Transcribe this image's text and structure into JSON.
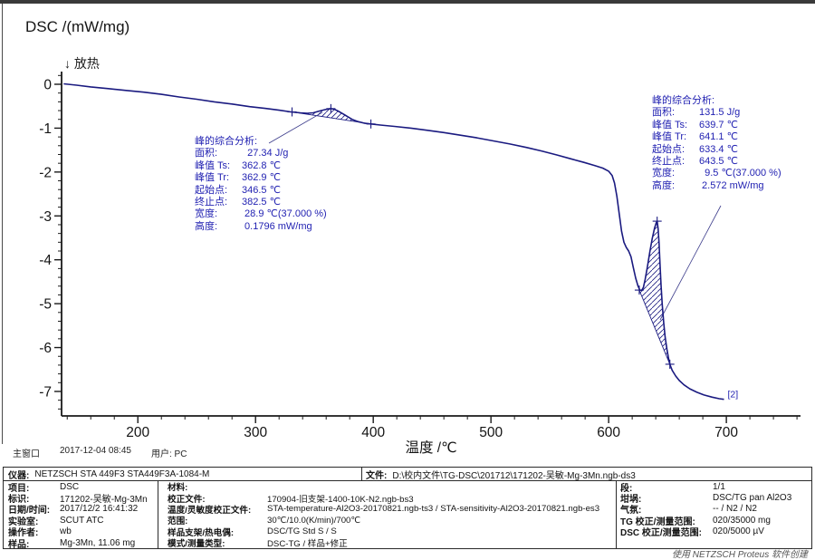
{
  "chart_data": {
    "type": "line",
    "ylabel": "DSC /(mW/mg)",
    "xlabel": "温度 /℃",
    "exo_note": "↓ 放热",
    "curve_label": "[2]",
    "x_ticks": [
      200,
      300,
      400,
      500,
      600,
      700
    ],
    "x_minor_step": 20,
    "y_ticks": [
      0,
      -1,
      -2,
      -3,
      -4,
      -5,
      -6,
      -7
    ],
    "y_minor_step": 0.2,
    "xlim": [
      135.2,
      763.0
    ],
    "ylim": [
      -7.558,
      0.289
    ],
    "grid": false,
    "series": [
      {
        "name": "DSC",
        "points": [
          [
            137,
            0.01
          ],
          [
            148,
            -0.02
          ],
          [
            160,
            -0.06
          ],
          [
            175,
            -0.1
          ],
          [
            190,
            -0.14
          ],
          [
            205,
            -0.18
          ],
          [
            220,
            -0.23
          ],
          [
            235,
            -0.29
          ],
          [
            250,
            -0.34
          ],
          [
            265,
            -0.4
          ],
          [
            280,
            -0.45
          ],
          [
            295,
            -0.51
          ],
          [
            308,
            -0.55
          ],
          [
            320,
            -0.59
          ],
          [
            330,
            -0.63
          ],
          [
            338,
            -0.65
          ],
          [
            344,
            -0.66
          ],
          [
            349,
            -0.65
          ],
          [
            353,
            -0.62
          ],
          [
            357,
            -0.59
          ],
          [
            361,
            -0.565
          ],
          [
            364,
            -0.555
          ],
          [
            367,
            -0.57
          ],
          [
            370,
            -0.61
          ],
          [
            374,
            -0.67
          ],
          [
            378,
            -0.735
          ],
          [
            382,
            -0.8
          ],
          [
            387,
            -0.85
          ],
          [
            393,
            -0.89
          ],
          [
            398,
            -0.905
          ],
          [
            406,
            -0.93
          ],
          [
            418,
            -0.96
          ],
          [
            432,
            -1.0
          ],
          [
            446,
            -1.05
          ],
          [
            460,
            -1.1
          ],
          [
            474,
            -1.16
          ],
          [
            488,
            -1.22
          ],
          [
            502,
            -1.29
          ],
          [
            516,
            -1.36
          ],
          [
            530,
            -1.44
          ],
          [
            543,
            -1.52
          ],
          [
            556,
            -1.61
          ],
          [
            568,
            -1.7
          ],
          [
            579,
            -1.78
          ],
          [
            588,
            -1.85
          ],
          [
            595,
            -1.91
          ],
          [
            600,
            -1.98
          ],
          [
            603,
            -2.08
          ],
          [
            605,
            -2.25
          ],
          [
            607,
            -2.55
          ],
          [
            609,
            -2.95
          ],
          [
            611,
            -3.35
          ],
          [
            613,
            -3.6
          ],
          [
            615,
            -3.72
          ],
          [
            617,
            -3.8
          ],
          [
            619,
            -3.93
          ],
          [
            621,
            -4.18
          ],
          [
            623,
            -4.42
          ],
          [
            625,
            -4.6
          ],
          [
            626.5,
            -4.69
          ],
          [
            628,
            -4.7
          ],
          [
            629.5,
            -4.63
          ],
          [
            631,
            -4.45
          ],
          [
            633,
            -4.15
          ],
          [
            635,
            -3.82
          ],
          [
            637,
            -3.52
          ],
          [
            639,
            -3.28
          ],
          [
            640.5,
            -3.15
          ],
          [
            641.2,
            -3.12
          ],
          [
            642,
            -3.28
          ],
          [
            642.8,
            -3.62
          ],
          [
            643.6,
            -4.08
          ],
          [
            644.5,
            -4.58
          ],
          [
            645.5,
            -5.02
          ],
          [
            646.8,
            -5.45
          ],
          [
            648,
            -5.76
          ],
          [
            649.5,
            -6.04
          ],
          [
            651,
            -6.26
          ],
          [
            652,
            -6.38
          ],
          [
            654,
            -6.52
          ],
          [
            657,
            -6.65
          ],
          [
            660,
            -6.75
          ],
          [
            664,
            -6.85
          ],
          [
            669,
            -6.94
          ],
          [
            675,
            -7.02
          ],
          [
            681,
            -7.08
          ],
          [
            688,
            -7.13
          ],
          [
            694,
            -7.165
          ],
          [
            698,
            -7.18
          ]
        ]
      }
    ],
    "peak_analyses": [
      {
        "title": "峰的综合分析:",
        "rows": [
          [
            "面积:",
            "  27.34 J/g"
          ],
          [
            "峰值 Ts:",
            "362.8 ℃"
          ],
          [
            "峰值 Tr:",
            "362.9 ℃"
          ],
          [
            "起始点:",
            "346.5 ℃"
          ],
          [
            "终止点:",
            "382.5 ℃"
          ],
          [
            "宽度:",
            " 28.9 ℃(37.000 %)"
          ],
          [
            "高度:",
            " 0.1796 mW/mg"
          ]
        ],
        "baseline": [
          [
            331,
            -0.63
          ],
          [
            398,
            -0.905
          ]
        ],
        "markers": [
          [
            331,
            -0.63
          ],
          [
            364,
            -0.555
          ],
          [
            398,
            -0.905
          ]
        ]
      },
      {
        "title": "峰的综合分析:",
        "rows": [
          [
            "面积:",
            "131.5 J/g"
          ],
          [
            "峰值 Ts:",
            "639.7 ℃"
          ],
          [
            "峰值 Tr:",
            "641.1 ℃"
          ],
          [
            "起始点:",
            "633.4 ℃"
          ],
          [
            "终止点:",
            "643.5 ℃"
          ],
          [
            "宽度:",
            "  9.5 ℃(37.000 %)"
          ],
          [
            "高度:",
            " 2.572 mW/mg"
          ]
        ],
        "baseline": [
          [
            626,
            -4.69
          ],
          [
            652,
            -6.38
          ]
        ],
        "markers": [
          [
            626,
            -4.69
          ],
          [
            641.2,
            -3.12
          ],
          [
            652,
            -6.38
          ]
        ]
      }
    ]
  },
  "statusbar": {
    "window_label": "主窗口",
    "datetime": "2017-12-04 08:45",
    "user": "用户: PC"
  },
  "footer": {
    "credit": "使用 NETZSCH Proteus 软件创建"
  },
  "info_table": {
    "row1": [
      {
        "label": "仪器:",
        "value": "NETZSCH STA 449F3 STA449F3A-1084-M"
      },
      {
        "label": "文件:",
        "value": "D:\\校内文件\\TG-DSC\\201712\\171202-吴敏-Mg-3Mn.ngb-ds3"
      }
    ],
    "rows": [
      [
        {
          "label": "项目:",
          "value": "DSC"
        },
        {
          "label": "材料:",
          "value": ""
        },
        {
          "label": "段:",
          "value": "1/1"
        }
      ],
      [
        {
          "label": "标识:",
          "value": "171202-吴敏-Mg-3Mn"
        },
        {
          "label": "校正文件:",
          "value": "170904-旧支架-1400-10K-N2.ngb-bs3"
        },
        {
          "label": "坩埚:",
          "value": "DSC/TG pan Al2O3"
        }
      ],
      [
        {
          "label": "日期/时间:",
          "value": "2017/12/2 16:41:32"
        },
        {
          "label": "温度/灵敏度校正文件:",
          "value": "STA-temperature-Al2O3-20170821.ngb-ts3 / STA-sensitivity-Al2O3-20170821.ngb-es3"
        },
        {
          "label": "气氛:",
          "value": "-- / N2 / N2"
        }
      ],
      [
        {
          "label": "实验室:",
          "value": "SCUT ATC"
        },
        {
          "label": "范围:",
          "value": "30℃/10.0(K/min)/700℃"
        },
        {
          "label": "TG 校正/测量范围:",
          "value": "020/35000 mg"
        }
      ],
      [
        {
          "label": "操作者:",
          "value": "wb"
        },
        {
          "label": "样品支架/热电偶:",
          "value": "DSC/TG Std S / S"
        },
        {
          "label": "DSC 校正/测量范围:",
          "value": "020/5000 µV"
        }
      ],
      [
        {
          "label": "样品:",
          "value": "Mg-3Mn, 11.06 mg"
        },
        {
          "label": "模式/测量类型:",
          "value": "DSC-TG / 样品+修正"
        },
        {
          "label": "",
          "value": ""
        }
      ]
    ]
  },
  "colors": {
    "curve": "#1a1a80",
    "annotation": "#2222b2",
    "axis": "#1a1a1a"
  }
}
